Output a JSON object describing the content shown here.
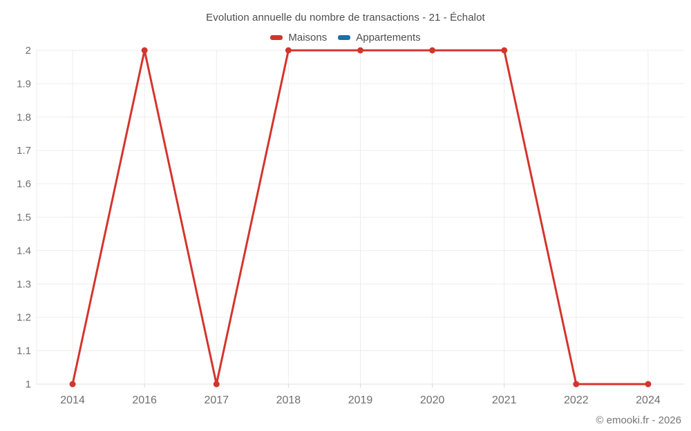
{
  "page": {
    "footer": "© emooki.fr - 2026"
  },
  "chart_data": {
    "type": "line",
    "title": "Evolution annuelle du nombre de transactions - 21 - Échalot",
    "categories": [
      "2014",
      "2016",
      "2017",
      "2018",
      "2019",
      "2020",
      "2021",
      "2022",
      "2024"
    ],
    "series": [
      {
        "name": "Maisons",
        "color": "#d4342c",
        "values": [
          1,
          2,
          1,
          2,
          2,
          2,
          2,
          1,
          1
        ]
      },
      {
        "name": "Appartements",
        "color": "#1d6fa5",
        "values": []
      }
    ],
    "ylim": [
      1,
      2
    ],
    "yticks": [
      1,
      1.1,
      1.2,
      1.3,
      1.4,
      1.5,
      1.6,
      1.7,
      1.8,
      1.9,
      2
    ],
    "ytick_labels": [
      "1",
      "1.1",
      "1.2",
      "1.3",
      "1.4",
      "1.5",
      "1.6",
      "1.7",
      "1.8",
      "1.9",
      "2"
    ],
    "grid": true,
    "legend_position": "top",
    "marker_radius": 4.5,
    "line_width": 3
  },
  "colors": {
    "grid": "#ededed",
    "axis_line": "#e0e0e0",
    "tick": "#d6d6d6",
    "axis_label": "#6e6e6e",
    "title_text": "#4c4c4c",
    "footer_text": "#757575"
  }
}
